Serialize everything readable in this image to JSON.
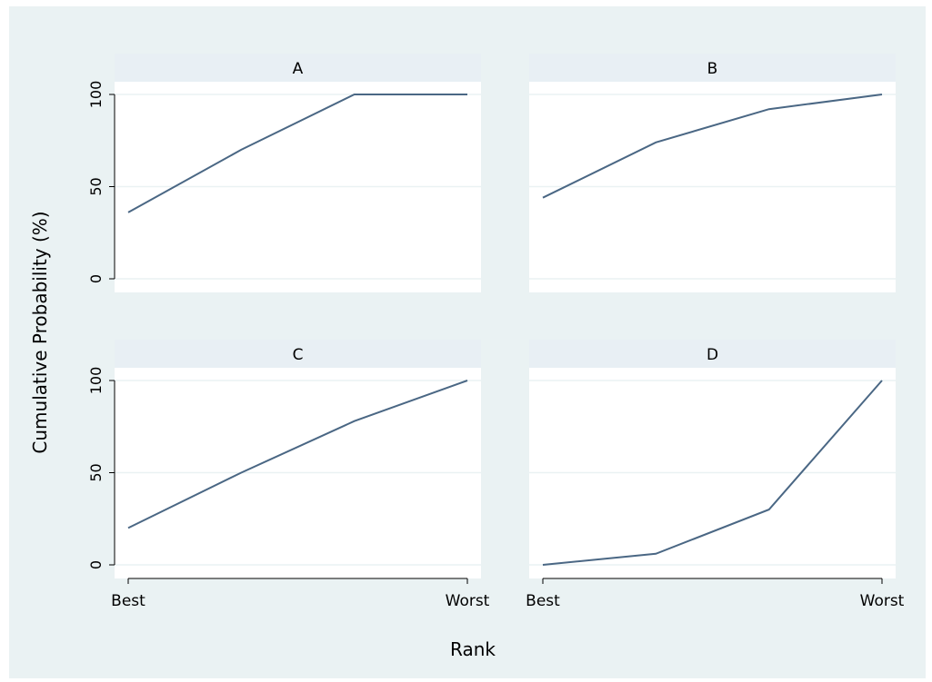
{
  "chart_data": {
    "type": "line",
    "layout": "2x2 small multiples",
    "ylabel": "Cumulative Probability (%)",
    "xlabel": "Rank",
    "x": [
      1,
      2,
      3,
      4
    ],
    "x_tick_labels": [
      {
        "x": 1,
        "label": "Best"
      },
      {
        "x": 4,
        "label": "Worst"
      }
    ],
    "ylim": [
      0,
      100
    ],
    "yticks": [
      0,
      50,
      100
    ],
    "grid": "horizontal",
    "colors": {
      "line": "#4a6784",
      "panel_header": "#e8eff4",
      "background": "#eaf2f3",
      "plot_area": "#ffffff",
      "gridline": "#eaf2f3"
    },
    "panels": [
      {
        "title": "A",
        "values": [
          36,
          70,
          100,
          100
        ]
      },
      {
        "title": "B",
        "values": [
          44,
          74,
          92,
          100
        ]
      },
      {
        "title": "C",
        "values": [
          20,
          50,
          78,
          100
        ]
      },
      {
        "title": "D",
        "values": [
          0,
          6,
          30,
          100
        ]
      }
    ]
  }
}
